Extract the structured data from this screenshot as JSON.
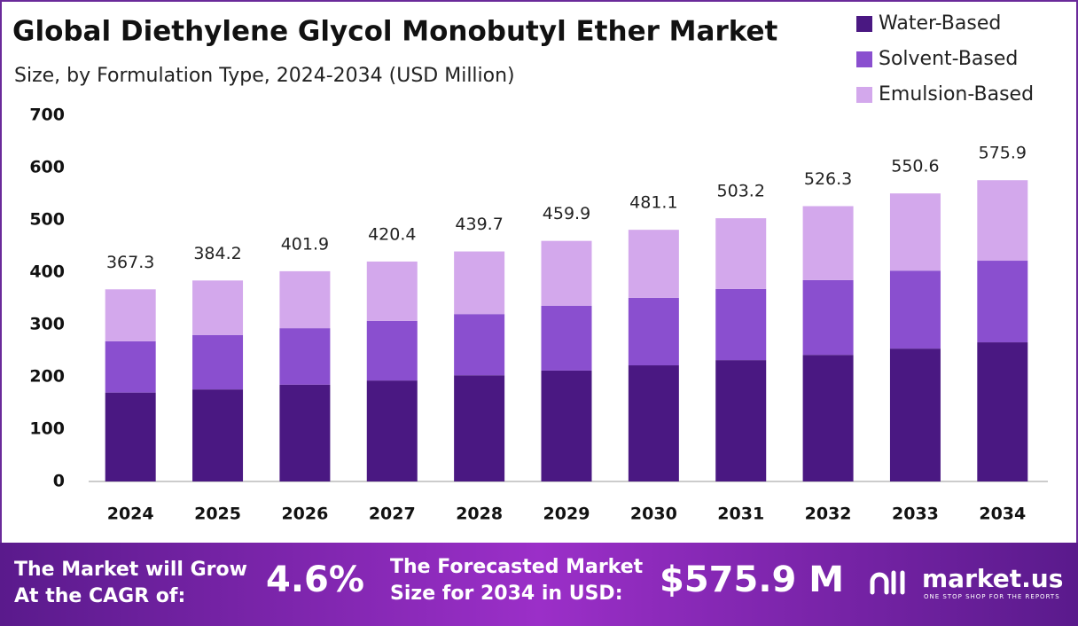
{
  "chart_data": {
    "type": "stacked_bar",
    "title": "Global Diethylene Glycol Monobutyl Ether Market",
    "subtitle": "Size, by Formulation Type, 2024-2034 (USD Million)",
    "categories": [
      "2024",
      "2025",
      "2026",
      "2027",
      "2028",
      "2029",
      "2030",
      "2031",
      "2032",
      "2033",
      "2034"
    ],
    "series": [
      {
        "name": "Water-Based",
        "color": "#4a1882",
        "values": [
          170,
          176,
          185,
          193,
          203,
          212,
          222,
          232,
          242,
          254,
          266
        ]
      },
      {
        "name": "Solvent-Based",
        "color": "#8a4fcf",
        "values": [
          98,
          104,
          108,
          114,
          117,
          124,
          129,
          136,
          143,
          149,
          156
        ]
      },
      {
        "name": "Emulsion-Based",
        "color": "#d3a8ec",
        "values": [
          99.3,
          104.2,
          108.9,
          113.4,
          119.7,
          123.9,
          130.1,
          135.2,
          141.3,
          147.6,
          153.9
        ]
      }
    ],
    "totals": [
      367.3,
      384.2,
      401.9,
      420.4,
      439.7,
      459.9,
      481.1,
      503.2,
      526.3,
      550.6,
      575.9
    ],
    "ylim": [
      0,
      700
    ],
    "yticks": [
      0,
      100,
      200,
      300,
      400,
      500,
      600,
      700
    ],
    "grid": false,
    "legend": "top-right"
  },
  "footer": {
    "cagr_text": [
      "The Market will Grow",
      "At the CAGR of:"
    ],
    "cagr": "4.6%",
    "forecast_text": [
      "The Forecasted Market",
      "Size for 2034 in USD:"
    ],
    "forecast": "$575.9 M",
    "brand": "market.us",
    "tagline": "ONE STOP SHOP FOR THE REPORTS"
  }
}
